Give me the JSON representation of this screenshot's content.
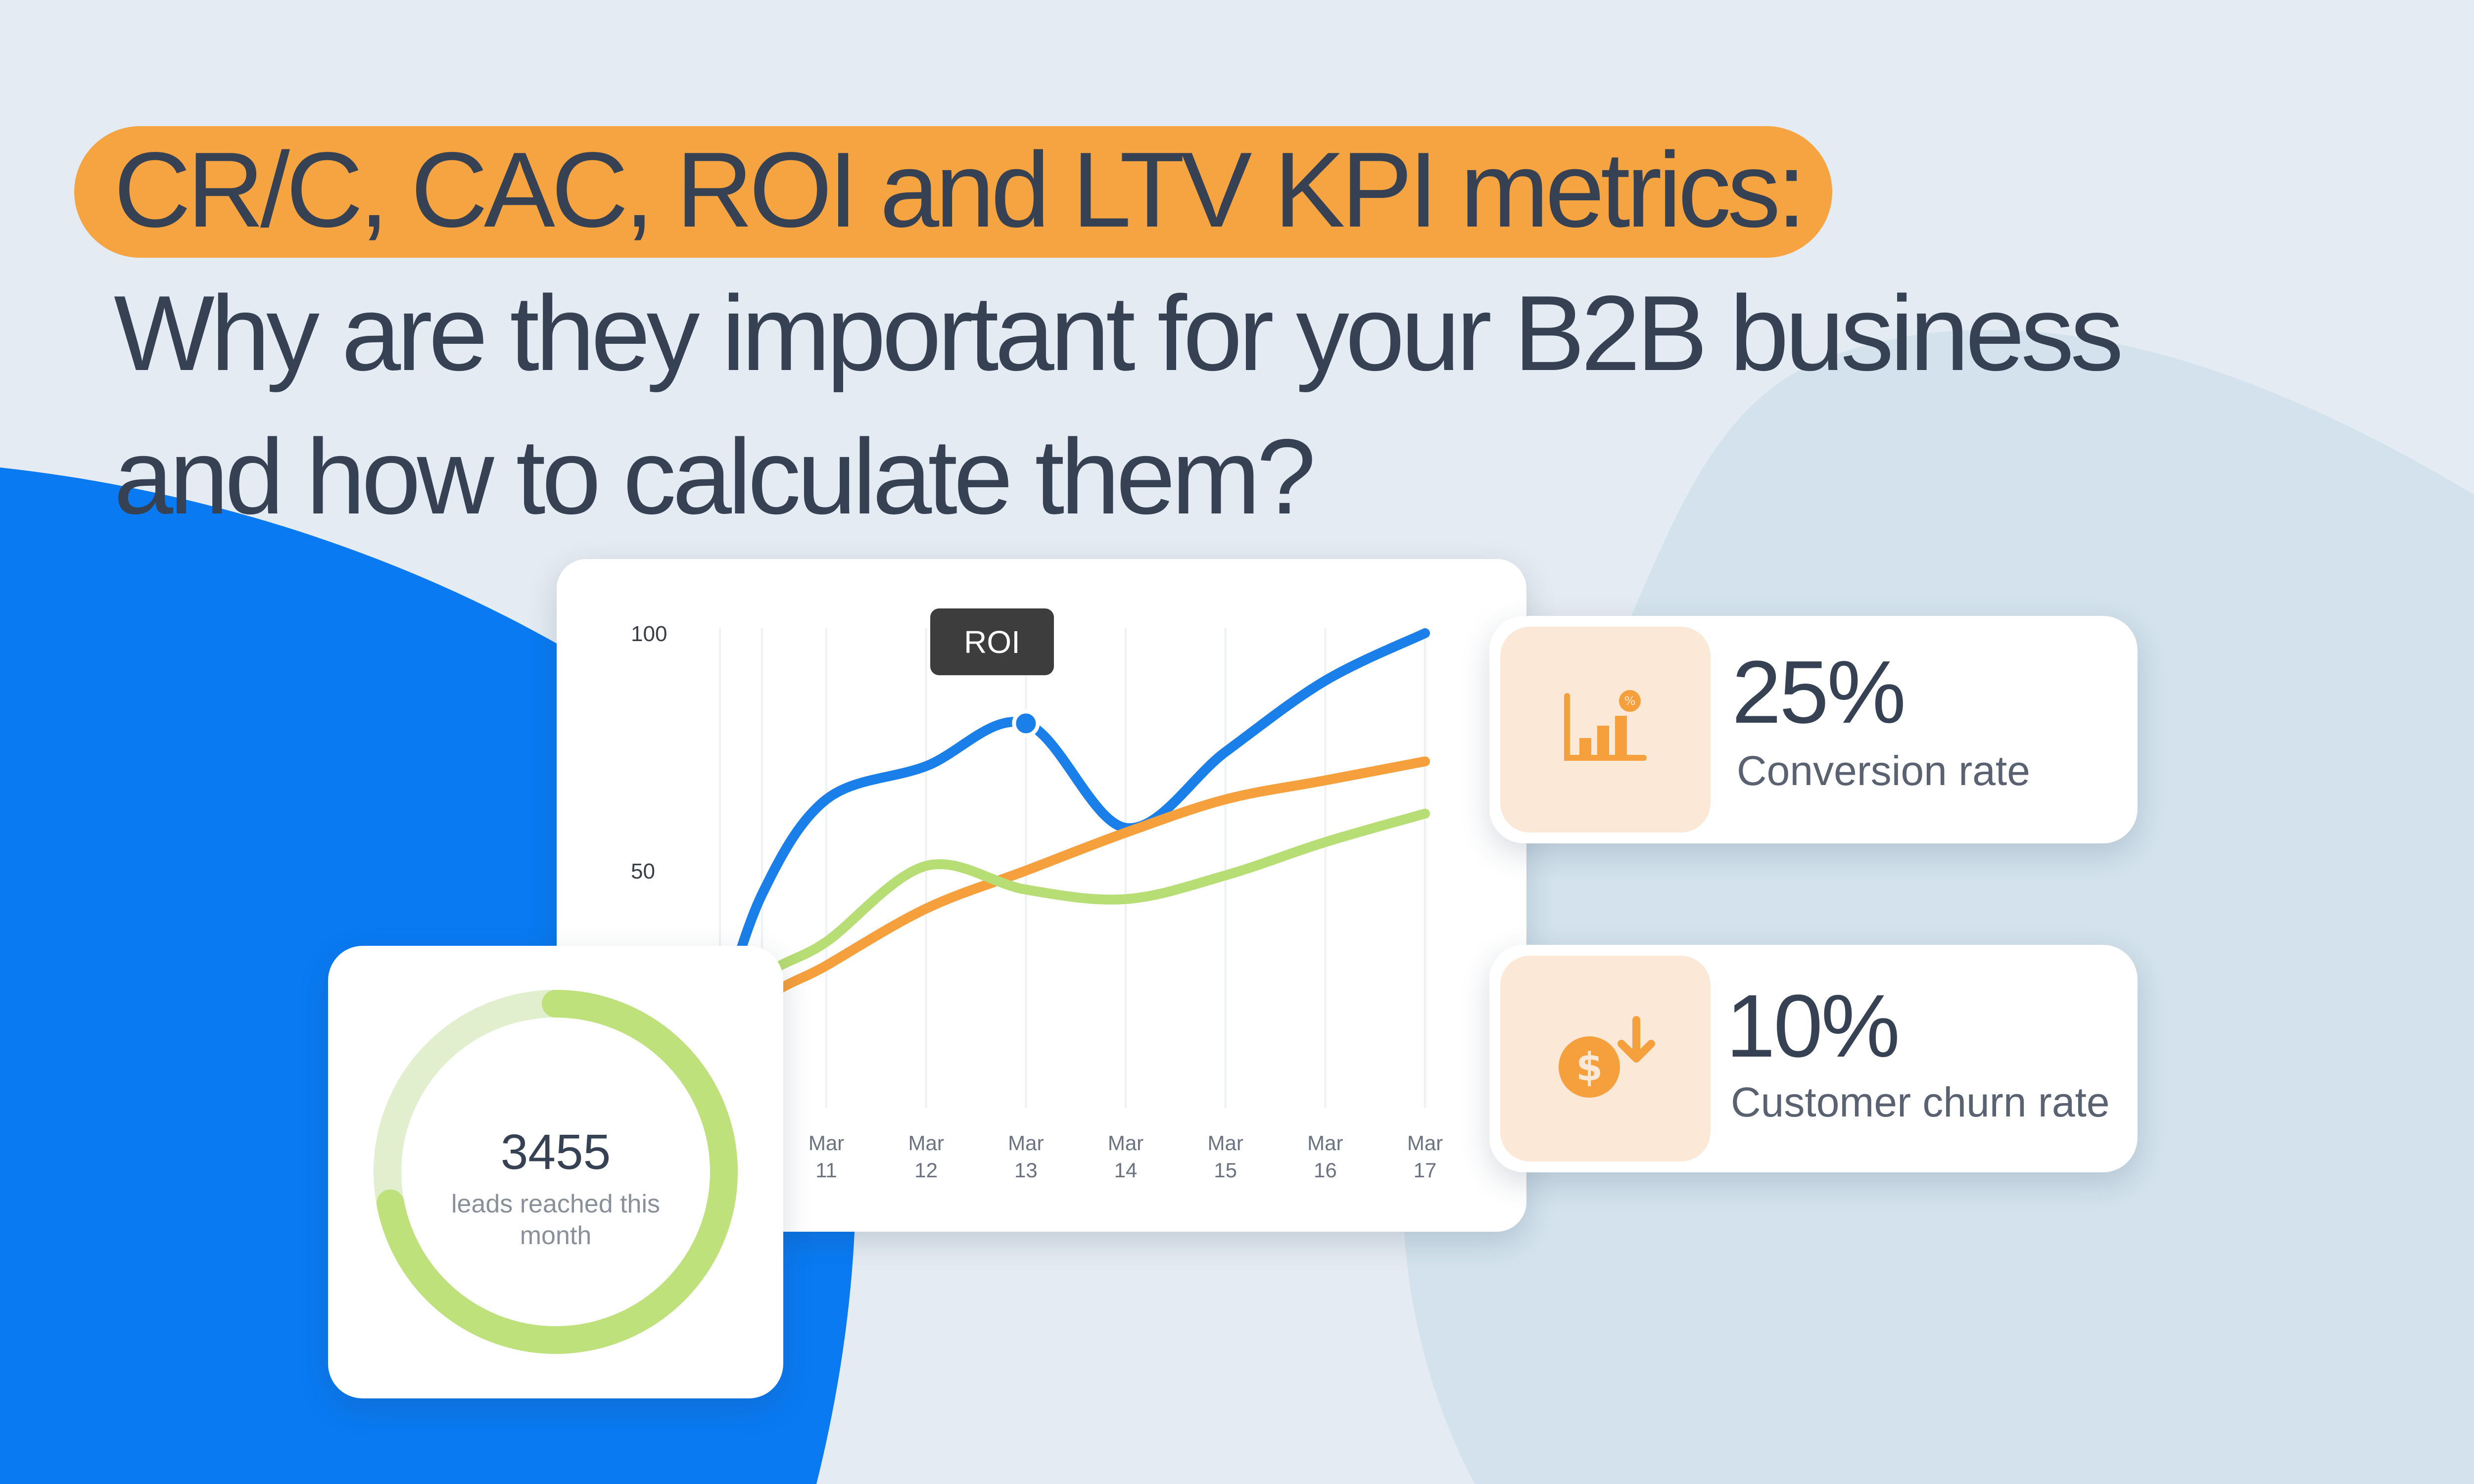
{
  "title": {
    "line1": "CR/C, CAC, ROI and LTV KPI metrics:",
    "line2": "Why are they important for your B2B business",
    "line3": "and how to calculate them?"
  },
  "colors": {
    "background": "#e4ebf2",
    "blob_light": "#d3e2ec",
    "blob_blue": "#0a7af2",
    "title_highlight": "#f5a441",
    "text_dark": "#364153"
  },
  "roi_tooltip": "ROI",
  "chart_data": {
    "type": "line",
    "x": [
      "Mar 11",
      "Mar 12",
      "Mar 13",
      "Mar 14",
      "Mar 15",
      "Mar 16",
      "Mar 17"
    ],
    "y_ticks": [
      "100",
      "50"
    ],
    "ylim": [
      0,
      100
    ],
    "grid": true,
    "series": [
      {
        "color": "#1a7fe8",
        "values": [
          65,
          72,
          81,
          59,
          75,
          90,
          100
        ],
        "highlight_index": 2
      },
      {
        "color": "#f6a03d",
        "values": [
          30,
          42,
          50,
          58,
          65,
          69,
          73
        ],
        "highlight_index": null
      },
      {
        "color": "#b7dd75",
        "values": [
          35,
          51,
          46,
          44,
          49,
          56,
          62
        ],
        "highlight_index": null
      }
    ],
    "x_ticks": [
      {
        "month": "Mar",
        "day": "11"
      },
      {
        "month": "Mar",
        "day": "12"
      },
      {
        "month": "Mar",
        "day": "13"
      },
      {
        "month": "Mar",
        "day": "14"
      },
      {
        "month": "Mar",
        "day": "15"
      },
      {
        "month": "Mar",
        "day": "16"
      },
      {
        "month": "Mar",
        "day": "17"
      }
    ]
  },
  "leads": {
    "value": "3455",
    "label": "leads reached this month",
    "progress": 0.72,
    "ring_color": "#bfe17b",
    "ring_track_color": "#e2efcf"
  },
  "kpis": [
    {
      "value": "25%",
      "label": "Conversion rate",
      "icon": "bar-chart-percent-icon",
      "icon_color": "#f6a03d"
    },
    {
      "value": "10%",
      "label": "Customer churn rate",
      "icon": "dollar-down-icon",
      "icon_color": "#f6a03d"
    }
  ]
}
